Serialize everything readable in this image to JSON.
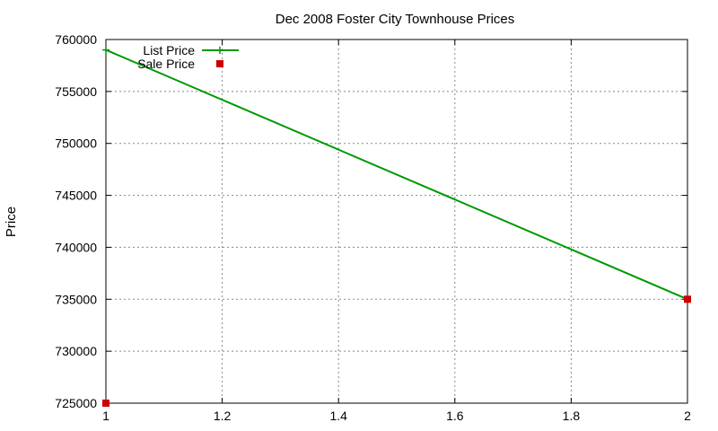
{
  "chart_data": {
    "type": "line",
    "title": "Dec 2008 Foster City Townhouse Prices",
    "xlabel": "",
    "ylabel": "Price",
    "xlim": [
      1,
      2
    ],
    "ylim": [
      725000,
      760000
    ],
    "x_ticks": [
      "1",
      "1.2",
      "1.4",
      "1.6",
      "1.8",
      "2"
    ],
    "y_ticks": [
      "725000",
      "730000",
      "735000",
      "740000",
      "745000",
      "750000",
      "755000",
      "760000"
    ],
    "grid": true,
    "legend_position": "top-left",
    "series": [
      {
        "name": "List Price",
        "style": "line+cross",
        "color": "#009900",
        "points": [
          {
            "x": 1,
            "y": 759000
          },
          {
            "x": 2,
            "y": 735000
          }
        ]
      },
      {
        "name": "Sale Price",
        "style": "square",
        "color": "#cc0000",
        "points": [
          {
            "x": 1,
            "y": 725000
          },
          {
            "x": 2,
            "y": 735000
          }
        ]
      }
    ]
  }
}
